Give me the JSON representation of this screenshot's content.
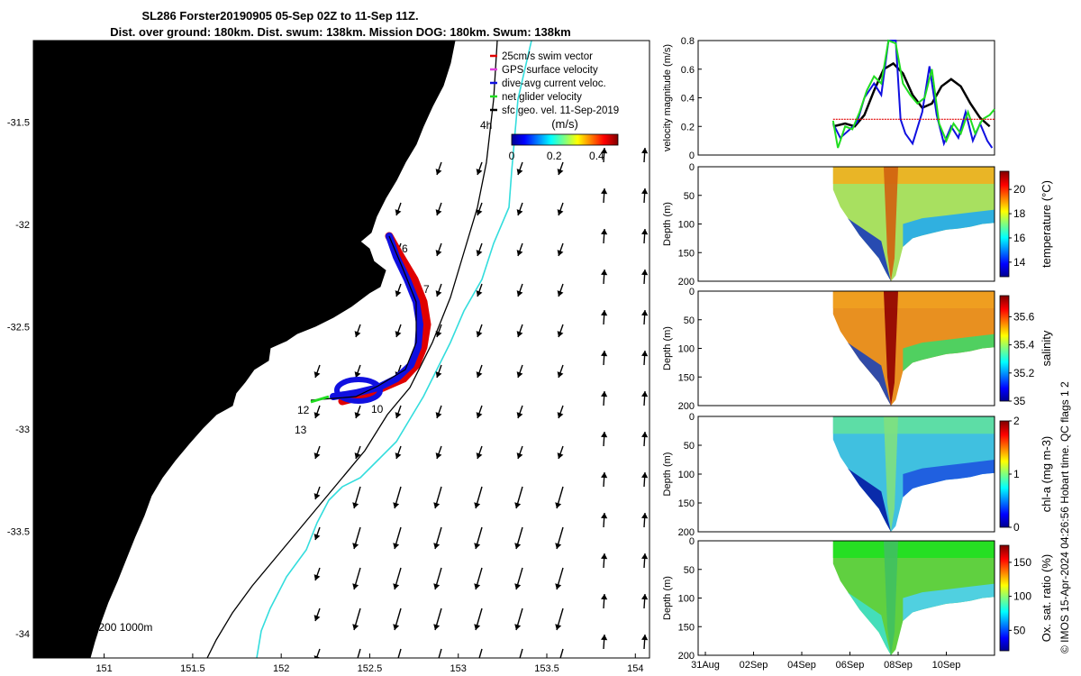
{
  "title": {
    "line1": "SL286 Forster20190905 05-Sep 02Z to 11-Sep 11Z.",
    "line2": "Dist. over ground: 180km. Dist. swum: 138km. Mission DOG: 180km. Swum: 138km"
  },
  "copyright": "© IMOS 15-Apr-2024 04:26:56 Hobart time. QC flags 1  2",
  "colors": {
    "land": "#FBCB98",
    "swim_vector": "#E00000",
    "gps_velocity": "#E040E0",
    "dive_current": "#1010E0",
    "net_glider": "#20DD20",
    "sfc_geo": "#000000",
    "isobath_200": "#33DDDD",
    "isobath_1000": "#000000"
  },
  "chart_data": [
    {
      "type": "map",
      "x_ticks": [
        "151",
        "151.5",
        "152",
        "152.5",
        "153",
        "153.5",
        "154"
      ],
      "y_ticks": [
        "-31.5",
        "-32",
        "-32.5",
        "-33",
        "-33.5",
        "-34"
      ],
      "xlim": [
        150.6,
        154.08
      ],
      "ylim": [
        -34.12,
        -31.1
      ],
      "legend": [
        {
          "label": "25cm/s swim vector",
          "color": "#E00000"
        },
        {
          "label": "GPS surface velocity",
          "color": "#E040E0"
        },
        {
          "label": "dive-avg current veloc.",
          "color": "#1010E0"
        },
        {
          "label": "net glider velocity",
          "color": "#20DD20"
        },
        {
          "label": "sfc geo. vel. 11-Sep-2019",
          "color": "#000000"
        }
      ],
      "colorbar": {
        "label": "(m/s)",
        "ticks": [
          "0",
          "0.2",
          "0.4"
        ],
        "range": [
          0,
          0.5
        ]
      },
      "isobath_label": "isobaths: 0 200 1000m",
      "waypoint_labels": [
        {
          "text": "4h",
          "lon": 53.0,
          "lat": -31.62
        },
        {
          "text": "6",
          "lon": 152.69,
          "lat": -32.19
        },
        {
          "text": "7",
          "lon": 152.82,
          "lat": -32.44
        },
        {
          "text": "10",
          "lon": 152.54,
          "lat": -32.98
        },
        {
          "text": "12",
          "lon": 152.13,
          "lat": -32.98
        },
        {
          "text": "13",
          "lon": 152.12,
          "lat": -33.07
        }
      ]
    },
    {
      "type": "line",
      "ylabel": "velocity magnitude (m/s)",
      "ylim": [
        0,
        0.8
      ],
      "y_ticks": [
        "0",
        "0.2",
        "0.4",
        "0.6",
        "0.8"
      ],
      "series": [
        {
          "color": "#000000",
          "x": [
            5.3,
            5.8,
            6.2,
            6.6,
            7.0,
            7.4,
            7.8,
            8.2,
            8.6,
            9.0,
            9.4,
            9.8,
            10.2,
            10.6,
            11.0,
            11.4,
            11.8
          ],
          "y": [
            0.2,
            0.22,
            0.2,
            0.28,
            0.45,
            0.6,
            0.64,
            0.57,
            0.42,
            0.33,
            0.36,
            0.48,
            0.53,
            0.48,
            0.36,
            0.26,
            0.2
          ]
        },
        {
          "color": "#1010E0",
          "x": [
            5.3,
            5.6,
            6.0,
            6.3,
            6.6,
            7.0,
            7.3,
            7.6,
            7.9,
            8.1,
            8.3,
            8.6,
            9.0,
            9.3,
            9.6,
            9.9,
            10.2,
            10.5,
            10.8,
            11.1,
            11.4,
            11.7,
            11.9
          ],
          "y": [
            0.22,
            0.12,
            0.18,
            0.23,
            0.4,
            0.5,
            0.42,
            0.8,
            0.8,
            0.25,
            0.15,
            0.08,
            0.3,
            0.62,
            0.28,
            0.08,
            0.2,
            0.12,
            0.3,
            0.1,
            0.22,
            0.1,
            0.05
          ]
        },
        {
          "color": "#20DD20",
          "x": [
            5.3,
            5.5,
            5.8,
            6.1,
            6.4,
            6.7,
            7.0,
            7.3,
            7.6,
            7.9,
            8.2,
            8.5,
            8.8,
            9.1,
            9.4,
            9.7,
            10.0,
            10.3,
            10.6,
            10.9,
            11.2,
            11.5,
            11.8,
            12.0
          ],
          "y": [
            0.24,
            0.05,
            0.2,
            0.18,
            0.3,
            0.45,
            0.55,
            0.5,
            0.8,
            0.78,
            0.5,
            0.42,
            0.36,
            0.4,
            0.6,
            0.22,
            0.1,
            0.22,
            0.15,
            0.3,
            0.15,
            0.25,
            0.28,
            0.32
          ]
        },
        {
          "color": "#E00000",
          "x": [
            5.3,
            12.0
          ],
          "y": [
            0.25,
            0.25
          ]
        }
      ]
    },
    {
      "type": "heatmap",
      "ylabel": "Depth (m)",
      "ylim": [
        200,
        0
      ],
      "y_ticks": [
        "0",
        "50",
        "100",
        "150",
        "200"
      ],
      "colorbar": {
        "label": "temperature (°C)",
        "ticks": [
          "14",
          "16",
          "18",
          "20"
        ],
        "range": [
          12.8,
          21.5
        ]
      }
    },
    {
      "type": "heatmap",
      "ylabel": "Depth (m)",
      "ylim": [
        200,
        0
      ],
      "y_ticks": [
        "0",
        "50",
        "100",
        "150",
        "200"
      ],
      "colorbar": {
        "label": "salinity",
        "ticks": [
          "35",
          "35.2",
          "35.4",
          "35.6"
        ],
        "range": [
          35.0,
          35.75
        ]
      }
    },
    {
      "type": "heatmap",
      "ylabel": "Depth (m)",
      "ylim": [
        200,
        0
      ],
      "y_ticks": [
        "0",
        "50",
        "100",
        "150",
        "200"
      ],
      "colorbar": {
        "label": "chl-a (mg m-3)",
        "ticks": [
          "0",
          "1",
          "2"
        ],
        "range": [
          0,
          2
        ]
      }
    },
    {
      "type": "heatmap",
      "ylabel": "Depth (m)",
      "ylim": [
        200,
        0
      ],
      "y_ticks": [
        "0",
        "50",
        "100",
        "150",
        "200"
      ],
      "colorbar": {
        "label": "Ox. sat. ratio (%)",
        "ticks": [
          "50",
          "100",
          "150"
        ],
        "range": [
          20,
          175
        ]
      }
    }
  ],
  "time_axis": {
    "ticks": [
      "31Aug",
      "02Sep",
      "04Sep",
      "06Sep",
      "08Sep",
      "10Sep"
    ],
    "tick_days": [
      0,
      2,
      4,
      6,
      8,
      10
    ],
    "range_days": [
      -0.3,
      12.0
    ]
  }
}
